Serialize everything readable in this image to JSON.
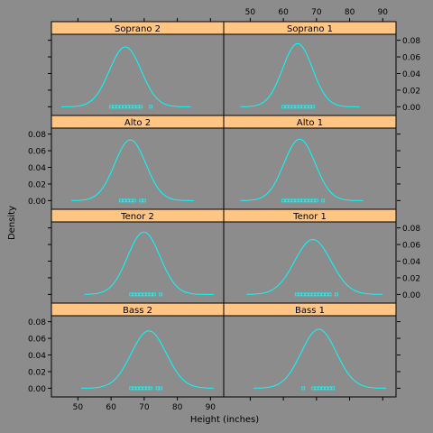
{
  "chart_data": {
    "type": "line",
    "subtype": "density-plot-trellis",
    "xlabel": "Height (inches)",
    "ylabel": "Density",
    "xlim": [
      42,
      94
    ],
    "ylim": [
      -0.005,
      0.085
    ],
    "x_ticks": [
      50,
      60,
      70,
      80,
      90
    ],
    "y_ticks": [
      0.0,
      0.02,
      0.04,
      0.06,
      0.08
    ],
    "y_tick_labels": [
      "0.00",
      "0.02",
      "0.04",
      "0.06",
      "0.08"
    ],
    "grid": false,
    "layout": {
      "columns": 2,
      "rows": 4
    },
    "colors": {
      "background": "#8c8c8c",
      "strip": "#ffc583",
      "curve": "#00ffff",
      "points": "#00ffff",
      "axis": "#000000"
    },
    "panels": [
      {
        "name": "Soprano 2",
        "row": 0,
        "col": 0,
        "mean": 64.3,
        "sd": 4.8,
        "peak": 0.072,
        "x_range": [
          45,
          84
        ],
        "points": [
          60,
          61,
          62,
          63,
          64,
          65,
          66,
          67,
          68,
          69,
          72
        ]
      },
      {
        "name": "Soprano 1",
        "row": 0,
        "col": 1,
        "mean": 64.3,
        "sd": 4.5,
        "peak": 0.076,
        "x_range": [
          47,
          83
        ],
        "points": [
          60,
          61,
          62,
          63,
          64,
          65,
          66,
          67,
          68,
          69
        ]
      },
      {
        "name": "Alto 2",
        "row": 1,
        "col": 0,
        "mean": 65.8,
        "sd": 4.7,
        "peak": 0.073,
        "x_range": [
          48,
          85
        ],
        "points": [
          63,
          64,
          65,
          66,
          67,
          69,
          70
        ]
      },
      {
        "name": "Alto 1",
        "row": 1,
        "col": 1,
        "mean": 64.9,
        "sd": 4.7,
        "peak": 0.074,
        "x_range": [
          47,
          84
        ],
        "points": [
          60,
          61,
          62,
          63,
          64,
          65,
          66,
          67,
          68,
          69,
          70,
          72
        ]
      },
      {
        "name": "Tenor 2",
        "row": 2,
        "col": 0,
        "mean": 69.9,
        "sd": 4.9,
        "peak": 0.075,
        "x_range": [
          52,
          91
        ],
        "points": [
          66,
          67,
          68,
          69,
          70,
          71,
          72,
          73,
          75
        ]
      },
      {
        "name": "Tenor 1",
        "row": 2,
        "col": 1,
        "mean": 68.9,
        "sd": 5.5,
        "peak": 0.066,
        "x_range": [
          49,
          90
        ],
        "points": [
          64,
          65,
          66,
          67,
          68,
          69,
          70,
          71,
          72,
          73,
          74,
          76
        ]
      },
      {
        "name": "Bass 2",
        "row": 3,
        "col": 0,
        "mean": 71.4,
        "sd": 5.3,
        "peak": 0.069,
        "x_range": [
          51,
          91
        ],
        "points": [
          66,
          67,
          68,
          69,
          70,
          71,
          72,
          74,
          75
        ]
      },
      {
        "name": "Bass 1",
        "row": 3,
        "col": 1,
        "mean": 70.7,
        "sd": 5.3,
        "peak": 0.071,
        "x_range": [
          51,
          91
        ],
        "points": [
          66,
          69,
          70,
          71,
          72,
          73,
          74,
          75
        ]
      }
    ]
  }
}
